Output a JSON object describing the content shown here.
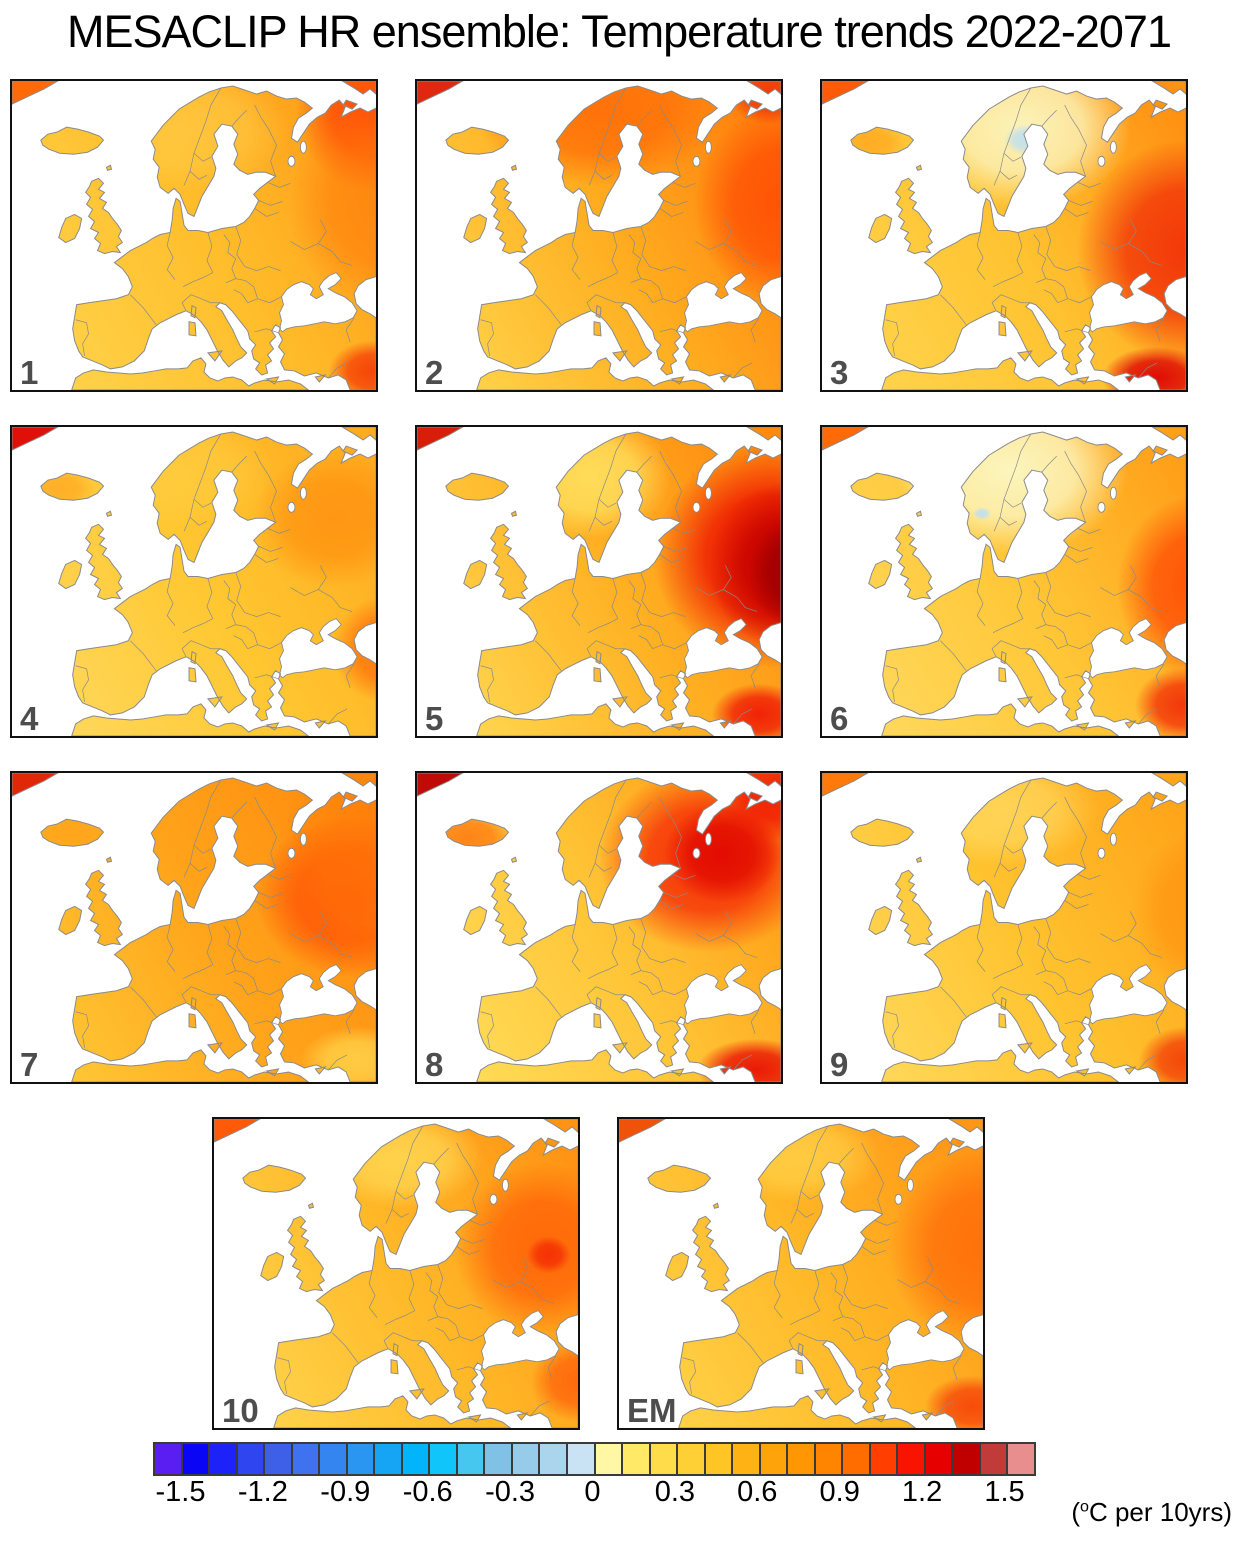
{
  "figure": {
    "title": "MESACLIP HR ensemble: Temperature trends 2022-2071",
    "units_label": {
      "open": "(",
      "sup": "o",
      "rest": "C per 10yrs)"
    }
  },
  "chart_data": {
    "type": "map-ensemble",
    "subject": "Temperature trend per decade over Europe, 10 ensemble members plus ensemble mean",
    "region": "Europe and surroundings, approx. 25W-45E / 30N-73N, white ocean background",
    "n_panels": 11,
    "panel_labels": [
      "1",
      "2",
      "3",
      "4",
      "5",
      "6",
      "7",
      "8",
      "9",
      "10",
      "EM"
    ],
    "colorbar": {
      "tick_labels": [
        "-1.5",
        "-1.2",
        "-0.9",
        "-0.6",
        "-0.3",
        "0",
        "0.3",
        "0.6",
        "0.9",
        "1.2",
        "1.5"
      ],
      "cell_step": 0.1,
      "n_cells": 32,
      "colors": [
        "#5A1EF2",
        "#0A06F5",
        "#1C22F8",
        "#2E45F0",
        "#3E60E8",
        "#3F72EE",
        "#3585F0",
        "#2A96F2",
        "#16A5F5",
        "#02B4FA",
        "#0FC5FA",
        "#46C7F0",
        "#7FC2E6",
        "#96CBE9",
        "#ABD4ED",
        "#C9E2F4",
        "#FFF7A3",
        "#FFE967",
        "#FFDC4A",
        "#FFD035",
        "#FFC524",
        "#FFB214",
        "#FFA30A",
        "#FF9604",
        "#FF8400",
        "#FF6C00",
        "#FF3E00",
        "#F81400",
        "#E60000",
        "#C00000",
        "#C13B3B",
        "#E98E8E"
      ]
    },
    "land_border_color": "#8a8a8a",
    "panels": [
      {
        "label": "1",
        "base": [
          "#FFD34A",
          "#FFBE2C",
          "#FF9A16"
        ],
        "greenland": "#FF6A08",
        "spots": [
          [
            1.0,
            0.1,
            0.22,
            0.26,
            "#FF4A06",
            0.95
          ],
          [
            1.02,
            0.4,
            0.26,
            0.34,
            "#FF7A0A",
            0.65
          ],
          [
            0.99,
            0.94,
            0.12,
            0.1,
            "#F53A05",
            0.9
          ],
          [
            0.5,
            0.16,
            0.26,
            0.2,
            "#FFD14E",
            0.55
          ]
        ]
      },
      {
        "label": "2",
        "base": [
          "#FFD34A",
          "#FFAE20",
          "#FF7E0C"
        ],
        "greenland": "#E02810",
        "spots": [
          [
            0.5,
            0.1,
            0.34,
            0.24,
            "#FF6A06",
            0.85
          ],
          [
            1.0,
            0.4,
            0.24,
            0.32,
            "#FF4E04",
            0.9
          ],
          [
            0.97,
            0.04,
            0.12,
            0.1,
            "#F03008",
            0.85
          ],
          [
            0.05,
            0.55,
            0.1,
            0.1,
            "#FFD85E",
            0.5
          ]
        ]
      },
      {
        "label": "3",
        "base": [
          "#FFD44C",
          "#FFC230",
          "#FF9212"
        ],
        "greenland": "#FF5A08",
        "spots": [
          [
            0.55,
            0.15,
            0.3,
            0.26,
            "#FBF6C0",
            0.95
          ],
          [
            0.56,
            0.19,
            0.06,
            0.05,
            "#BFDFF0",
            0.95
          ],
          [
            1.0,
            0.55,
            0.3,
            0.36,
            "#F23208",
            0.95
          ],
          [
            0.92,
            0.96,
            0.15,
            0.1,
            "#DE0303",
            0.95
          ],
          [
            0.13,
            0.2,
            0.1,
            0.07,
            "#FF9A14",
            0.6
          ]
        ]
      },
      {
        "label": "4",
        "base": [
          "#FFD85C",
          "#FFC731",
          "#FFAB1E"
        ],
        "greenland": "#E01008",
        "spots": [
          [
            0.88,
            0.3,
            0.22,
            0.22,
            "#FF8A0C",
            0.7
          ],
          [
            1.02,
            0.72,
            0.14,
            0.17,
            "#FF6A08",
            0.8
          ],
          [
            0.48,
            0.15,
            0.24,
            0.18,
            "#FFD24A",
            0.5
          ],
          [
            0.13,
            0.2,
            0.1,
            0.07,
            "#FF9A14",
            0.6
          ]
        ]
      },
      {
        "label": "5",
        "base": [
          "#FFD750",
          "#FFB224",
          "#FF8A0E"
        ],
        "greenland": "#D81E08",
        "spots": [
          [
            0.48,
            0.16,
            0.22,
            0.2,
            "#FFE260",
            0.9
          ],
          [
            0.97,
            0.42,
            0.32,
            0.36,
            "#EE1400",
            0.95
          ],
          [
            1.02,
            0.45,
            0.22,
            0.27,
            "#C40000",
            0.95
          ],
          [
            1.04,
            0.47,
            0.13,
            0.18,
            "#9C0000",
            0.95
          ],
          [
            0.94,
            0.93,
            0.13,
            0.1,
            "#EF1404",
            0.9
          ]
        ]
      },
      {
        "label": "6",
        "base": [
          "#FFD95E",
          "#FFC737",
          "#FFA019"
        ],
        "greenland": "#FF6A08",
        "spots": [
          [
            0.52,
            0.14,
            0.32,
            0.27,
            "#FCF8C4",
            0.95
          ],
          [
            0.44,
            0.28,
            0.025,
            0.02,
            "#BFDFF0",
            0.95
          ],
          [
            1.03,
            0.52,
            0.22,
            0.3,
            "#FF4A04",
            0.9
          ],
          [
            0.99,
            0.9,
            0.13,
            0.12,
            "#F22A06",
            0.9
          ]
        ]
      },
      {
        "label": "7",
        "base": [
          "#FFC836",
          "#FFA51B",
          "#FF8A0E"
        ],
        "greenland": "#E02808",
        "spots": [
          [
            0.93,
            0.4,
            0.26,
            0.26,
            "#FF4404",
            0.85
          ],
          [
            1.02,
            0.3,
            0.3,
            0.36,
            "#FF7A08",
            0.7
          ],
          [
            0.95,
            0.93,
            0.16,
            0.11,
            "#FFD84E",
            0.8
          ],
          [
            0.14,
            0.2,
            0.13,
            0.09,
            "#FF9E16",
            0.6
          ]
        ]
      },
      {
        "label": "8",
        "base": [
          "#FFDC58",
          "#FFC436",
          "#FF9A12"
        ],
        "greenland": "#C00A08",
        "spots": [
          [
            0.8,
            0.28,
            0.3,
            0.3,
            "#F52505",
            0.9
          ],
          [
            0.84,
            0.26,
            0.16,
            0.16,
            "#E00800",
            0.9
          ],
          [
            1.0,
            0.06,
            0.18,
            0.16,
            "#EE1004",
            0.85
          ],
          [
            0.93,
            0.96,
            0.16,
            0.1,
            "#E91104",
            0.95
          ],
          [
            0.14,
            0.21,
            0.13,
            0.09,
            "#FF6A08",
            0.75
          ]
        ]
      },
      {
        "label": "9",
        "base": [
          "#FFD95C",
          "#FFC32F",
          "#FFA51A"
        ],
        "greenland": "#FF7A0A",
        "spots": [
          [
            1.0,
            0.93,
            0.13,
            0.11,
            "#F23A06",
            0.9
          ],
          [
            1.03,
            0.45,
            0.18,
            0.26,
            "#FF8E0C",
            0.65
          ],
          [
            0.5,
            0.12,
            0.26,
            0.18,
            "#FFE372",
            0.6
          ]
        ]
      },
      {
        "label": "10",
        "base": [
          "#FFD44C",
          "#FFB828",
          "#FF9414"
        ],
        "greenland": "#FF5A08",
        "spots": [
          [
            0.9,
            0.42,
            0.24,
            0.28,
            "#FF5E06",
            0.85
          ],
          [
            0.92,
            0.44,
            0.06,
            0.06,
            "#F42C04",
            0.9
          ],
          [
            1.0,
            0.85,
            0.13,
            0.13,
            "#FF5A08",
            0.8
          ],
          [
            0.52,
            0.13,
            0.22,
            0.16,
            "#FFE15E",
            0.7
          ]
        ]
      },
      {
        "label": "EM",
        "base": [
          "#FFD34A",
          "#FFB827",
          "#FF9616"
        ],
        "greenland": "#F0520A",
        "spots": [
          [
            1.0,
            0.42,
            0.26,
            0.32,
            "#FF6A08",
            0.85
          ],
          [
            0.97,
            0.93,
            0.13,
            0.1,
            "#F6470A",
            0.95
          ],
          [
            0.5,
            0.12,
            0.22,
            0.15,
            "#FFDD55",
            0.6
          ]
        ]
      }
    ]
  }
}
